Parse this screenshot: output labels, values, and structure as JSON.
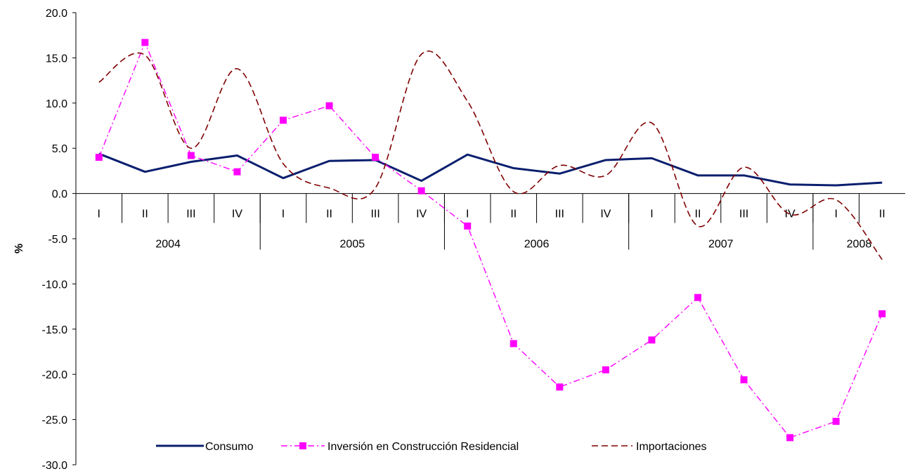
{
  "chart_data": {
    "type": "line",
    "ylabel": "%",
    "ylim": [
      -30,
      20
    ],
    "ytick_step": 5,
    "ytick_labels": [
      "20.0",
      "15.0",
      "10.0",
      "5.0",
      "0.0",
      "-5.0",
      "-10.0",
      "-15.0",
      "-20.0",
      "-25.0",
      "-30.0"
    ],
    "categories": [
      "I",
      "II",
      "III",
      "IV",
      "I",
      "II",
      "III",
      "IV",
      "I",
      "II",
      "III",
      "IV",
      "I",
      "II",
      "III",
      "IV",
      "I",
      "II"
    ],
    "years": [
      {
        "label": "2004",
        "quarters": 4
      },
      {
        "label": "2005",
        "quarters": 4
      },
      {
        "label": "2006",
        "quarters": 4
      },
      {
        "label": "2007",
        "quarters": 4
      },
      {
        "label": "2008",
        "quarters": 2
      }
    ],
    "legend_position": "bottom",
    "series": [
      {
        "name": "Consumo",
        "color": "#0a1f6e",
        "style": "solid",
        "values": [
          4.4,
          2.4,
          3.5,
          4.2,
          1.7,
          3.6,
          3.7,
          1.4,
          4.3,
          2.8,
          2.2,
          3.7,
          3.9,
          2.0,
          2.0,
          1.0,
          0.9,
          1.2
        ]
      },
      {
        "name": "Inversión en Construcción Residencial",
        "color": "#ff00ff",
        "style": "dashdot",
        "marker": "square",
        "values": [
          4.0,
          16.7,
          4.2,
          2.4,
          8.1,
          9.7,
          4.0,
          0.3,
          -3.6,
          -16.6,
          -21.4,
          -19.5,
          -16.2,
          -11.5,
          -20.6,
          -27.0,
          -25.2,
          -13.3
        ]
      },
      {
        "name": "Importaciones",
        "color": "#800000",
        "style": "dashed",
        "values": [
          12.3,
          15.3,
          5.0,
          13.8,
          3.3,
          0.6,
          0.6,
          15.4,
          10.2,
          0.2,
          3.1,
          2.0,
          7.8,
          -3.6,
          2.9,
          -2.3,
          -0.7,
          -7.3
        ]
      }
    ]
  }
}
